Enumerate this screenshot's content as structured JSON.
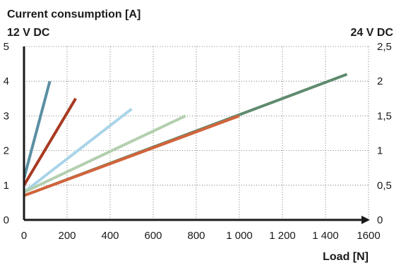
{
  "chart_data": {
    "type": "line",
    "title": "Current consumption [A]",
    "left_axis_label": "12 V DC",
    "right_axis_label": "24 V DC",
    "xlabel": "Load [N]",
    "xlim": [
      0,
      1600
    ],
    "ylim_left": [
      0,
      5
    ],
    "ylim_right": [
      0,
      2.5
    ],
    "x_ticks": [
      "0",
      "200",
      "400",
      "600",
      "800",
      "1 000",
      "1 200",
      "1 400",
      "1600"
    ],
    "x_tick_values": [
      0,
      200,
      400,
      600,
      800,
      1000,
      1200,
      1400,
      1600
    ],
    "y_ticks_left": [
      "0",
      "1",
      "2",
      "3",
      "4",
      "5"
    ],
    "y_tick_values_left": [
      0,
      1,
      2,
      3,
      4,
      5
    ],
    "y_ticks_right": [
      "0",
      "0,5",
      "1",
      "1,5",
      "2",
      "2,5"
    ],
    "grid": true,
    "grid_style": "dotted",
    "series": [
      {
        "color": "#5b8fa3",
        "x": [
          0,
          120
        ],
        "y": [
          1.2,
          4.0
        ]
      },
      {
        "color": "#a83a22",
        "x": [
          0,
          240
        ],
        "y": [
          1.0,
          3.5
        ]
      },
      {
        "color": "#a9d4e8",
        "x": [
          0,
          500
        ],
        "y": [
          0.8,
          3.2
        ]
      },
      {
        "color": "#b3cfae",
        "x": [
          0,
          750
        ],
        "y": [
          0.8,
          3.0
        ]
      },
      {
        "color": "#5f8b6e",
        "x": [
          0,
          1500
        ],
        "y": [
          0.7,
          4.2
        ]
      },
      {
        "color": "#d2643c",
        "x": [
          0,
          1000
        ],
        "y": [
          0.7,
          3.0
        ]
      }
    ]
  }
}
